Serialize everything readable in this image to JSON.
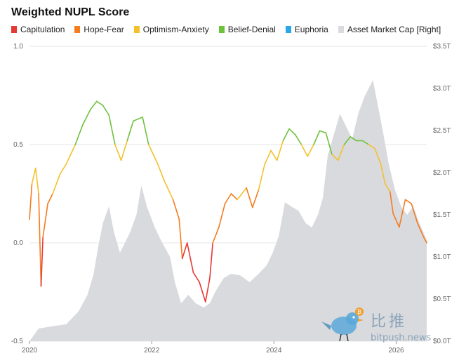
{
  "chart_data": {
    "type": "line",
    "title": "Weighted NUPL Score",
    "legend": [
      {
        "name": "Capitulation",
        "color": "#e53935"
      },
      {
        "name": "Hope-Fear",
        "color": "#f57c1f"
      },
      {
        "name": "Optimism-Anxiety",
        "color": "#f3c12b"
      },
      {
        "name": "Belief-Denial",
        "color": "#6cc23a"
      },
      {
        "name": "Euphoria",
        "color": "#2aa7e8"
      },
      {
        "name": "Asset Market Cap [Right]",
        "color": "#d9dade"
      }
    ],
    "legend_position": "top-left",
    "grid": true,
    "x_ticks": [
      "2020",
      "2022",
      "2024",
      "2026"
    ],
    "y_ticks_left": [
      "1.0",
      "0.5",
      "0.0",
      "-0.5"
    ],
    "y_ticks_right": [
      "$3.5T",
      "$3.0T",
      "$2.5T",
      "$2.0T",
      "$1.5T",
      "$1.0T",
      "$0.5T",
      "$0.0T"
    ],
    "ylim_left": [
      -0.5,
      1.0
    ],
    "ylim_right": [
      0,
      3.5
    ],
    "xlim": [
      2020.0,
      2026.5
    ],
    "nupl_series": [
      [
        2020.0,
        0.12
      ],
      [
        2020.04,
        0.3
      ],
      [
        2020.1,
        0.38
      ],
      [
        2020.15,
        0.25
      ],
      [
        2020.19,
        -0.22
      ],
      [
        2020.22,
        0.03
      ],
      [
        2020.3,
        0.2
      ],
      [
        2020.38,
        0.25
      ],
      [
        2020.5,
        0.35
      ],
      [
        2020.6,
        0.4
      ],
      [
        2020.75,
        0.5
      ],
      [
        2020.87,
        0.6
      ],
      [
        2021.0,
        0.68
      ],
      [
        2021.1,
        0.72
      ],
      [
        2021.2,
        0.7
      ],
      [
        2021.3,
        0.65
      ],
      [
        2021.4,
        0.5
      ],
      [
        2021.5,
        0.42
      ],
      [
        2021.6,
        0.52
      ],
      [
        2021.7,
        0.62
      ],
      [
        2021.85,
        0.64
      ],
      [
        2021.95,
        0.5
      ],
      [
        2022.1,
        0.4
      ],
      [
        2022.2,
        0.32
      ],
      [
        2022.35,
        0.22
      ],
      [
        2022.45,
        0.12
      ],
      [
        2022.5,
        -0.08
      ],
      [
        2022.58,
        0.0
      ],
      [
        2022.68,
        -0.15
      ],
      [
        2022.78,
        -0.2
      ],
      [
        2022.88,
        -0.3
      ],
      [
        2022.95,
        -0.18
      ],
      [
        2023.0,
        0.0
      ],
      [
        2023.1,
        0.08
      ],
      [
        2023.2,
        0.2
      ],
      [
        2023.3,
        0.25
      ],
      [
        2023.4,
        0.22
      ],
      [
        2023.55,
        0.28
      ],
      [
        2023.65,
        0.18
      ],
      [
        2023.75,
        0.27
      ],
      [
        2023.85,
        0.4
      ],
      [
        2023.95,
        0.47
      ],
      [
        2024.05,
        0.42
      ],
      [
        2024.15,
        0.52
      ],
      [
        2024.25,
        0.58
      ],
      [
        2024.35,
        0.55
      ],
      [
        2024.45,
        0.5
      ],
      [
        2024.55,
        0.44
      ],
      [
        2024.65,
        0.5
      ],
      [
        2024.75,
        0.57
      ],
      [
        2024.85,
        0.56
      ],
      [
        2024.95,
        0.45
      ],
      [
        2025.05,
        0.42
      ],
      [
        2025.15,
        0.5
      ],
      [
        2025.25,
        0.54
      ],
      [
        2025.35,
        0.52
      ],
      [
        2025.45,
        0.52
      ],
      [
        2025.55,
        0.5
      ],
      [
        2025.65,
        0.48
      ],
      [
        2025.75,
        0.4
      ],
      [
        2025.82,
        0.3
      ],
      [
        2025.9,
        0.26
      ],
      [
        2025.95,
        0.15
      ],
      [
        2026.05,
        0.08
      ],
      [
        2026.15,
        0.22
      ],
      [
        2026.25,
        0.2
      ],
      [
        2026.35,
        0.1
      ],
      [
        2026.45,
        0.03
      ],
      [
        2026.5,
        0.0
      ]
    ],
    "market_cap_series": [
      [
        2020.0,
        0.0
      ],
      [
        2020.15,
        0.15
      ],
      [
        2020.4,
        0.18
      ],
      [
        2020.6,
        0.2
      ],
      [
        2020.8,
        0.35
      ],
      [
        2020.95,
        0.55
      ],
      [
        2021.05,
        0.8
      ],
      [
        2021.12,
        1.1
      ],
      [
        2021.2,
        1.4
      ],
      [
        2021.3,
        1.6
      ],
      [
        2021.38,
        1.3
      ],
      [
        2021.48,
        1.05
      ],
      [
        2021.55,
        1.15
      ],
      [
        2021.65,
        1.3
      ],
      [
        2021.75,
        1.5
      ],
      [
        2021.83,
        1.85
      ],
      [
        2021.92,
        1.6
      ],
      [
        2022.05,
        1.35
      ],
      [
        2022.15,
        1.2
      ],
      [
        2022.3,
        1.0
      ],
      [
        2022.38,
        0.7
      ],
      [
        2022.48,
        0.45
      ],
      [
        2022.6,
        0.55
      ],
      [
        2022.72,
        0.45
      ],
      [
        2022.85,
        0.4
      ],
      [
        2022.95,
        0.45
      ],
      [
        2023.05,
        0.6
      ],
      [
        2023.18,
        0.75
      ],
      [
        2023.3,
        0.8
      ],
      [
        2023.45,
        0.78
      ],
      [
        2023.6,
        0.7
      ],
      [
        2023.75,
        0.8
      ],
      [
        2023.88,
        0.9
      ],
      [
        2023.98,
        1.05
      ],
      [
        2024.08,
        1.25
      ],
      [
        2024.18,
        1.65
      ],
      [
        2024.28,
        1.6
      ],
      [
        2024.4,
        1.55
      ],
      [
        2024.52,
        1.4
      ],
      [
        2024.62,
        1.35
      ],
      [
        2024.72,
        1.5
      ],
      [
        2024.8,
        1.7
      ],
      [
        2024.88,
        2.2
      ],
      [
        2024.98,
        2.45
      ],
      [
        2025.08,
        2.7
      ],
      [
        2025.18,
        2.55
      ],
      [
        2025.28,
        2.4
      ],
      [
        2025.38,
        2.7
      ],
      [
        2025.48,
        2.9
      ],
      [
        2025.55,
        3.0
      ],
      [
        2025.62,
        3.1
      ],
      [
        2025.7,
        2.8
      ],
      [
        2025.78,
        2.5
      ],
      [
        2025.88,
        2.1
      ],
      [
        2025.98,
        1.8
      ],
      [
        2026.08,
        1.6
      ],
      [
        2026.18,
        1.5
      ],
      [
        2026.28,
        1.6
      ],
      [
        2026.38,
        1.4
      ],
      [
        2026.5,
        1.2
      ]
    ]
  },
  "watermark": {
    "text": "比推",
    "url": "bitpush.news"
  }
}
